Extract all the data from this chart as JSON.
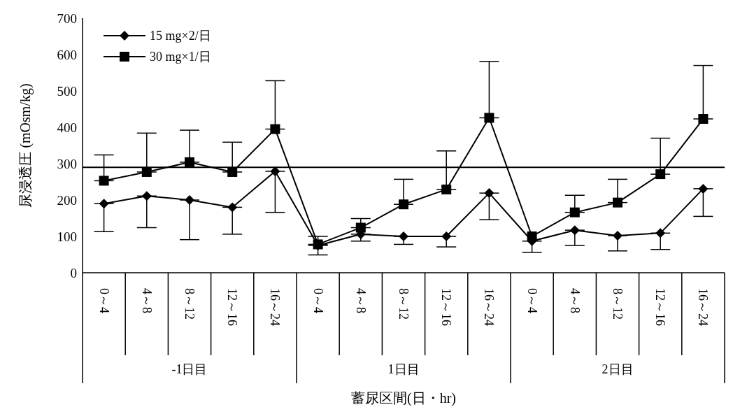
{
  "chart_data": {
    "type": "line",
    "xlabel": "蓄尿区間(日・hr)",
    "ylabel": "尿浸透圧 (mOsm/kg)",
    "categories": [
      "0～4",
      "4～8",
      "8～12",
      "12～16",
      "16～24",
      "0～4",
      "4～8",
      "8～12",
      "12～16",
      "16～24",
      "0～4",
      "4～8",
      "8～12",
      "12～16",
      "16～24"
    ],
    "annotations": [
      "-1日目",
      "1日目",
      "2日目"
    ],
    "series": [
      {
        "name": "15 mg×2/日",
        "color": "#000000",
        "marker": "diamond",
        "values": [
          190,
          211,
          200,
          180,
          279,
          75,
          106,
          100,
          100,
          219,
          87,
          117,
          102,
          109,
          231
        ],
        "errors": [
          [
            113,
            190
          ],
          [
            124,
            211
          ],
          [
            91,
            200
          ],
          [
            106,
            180
          ],
          [
            166,
            279
          ],
          [
            49,
            75
          ],
          [
            87,
            106
          ],
          [
            78,
            100
          ],
          [
            71,
            100
          ],
          [
            146,
            219
          ],
          [
            56,
            87
          ],
          [
            75,
            117
          ],
          [
            60,
            102
          ],
          [
            64,
            109
          ],
          [
            155,
            231
          ]
        ]
      },
      {
        "name": "30 mg×1/日",
        "color": "#000000",
        "marker": "square",
        "values": [
          253,
          277,
          304,
          277,
          395,
          78,
          124,
          188,
          229,
          426,
          100,
          166,
          193,
          271,
          423
        ],
        "errors": [
          [
            253,
            324
          ],
          [
            277,
            384
          ],
          [
            304,
            392
          ],
          [
            277,
            359
          ],
          [
            395,
            528
          ],
          [
            78,
            100
          ],
          [
            124,
            149
          ],
          [
            188,
            257
          ],
          [
            229,
            335
          ],
          [
            426,
            581
          ],
          null,
          [
            166,
            213
          ],
          [
            193,
            257
          ],
          [
            271,
            370
          ],
          [
            423,
            570
          ]
        ]
      }
    ],
    "ylim": [
      0,
      700
    ],
    "yticks": [
      0,
      100,
      200,
      300,
      400,
      500,
      600,
      700
    ],
    "ref_lines": [
      {
        "axis": "y",
        "value": 290,
        "color": "#000000"
      }
    ],
    "legend": "top left"
  }
}
